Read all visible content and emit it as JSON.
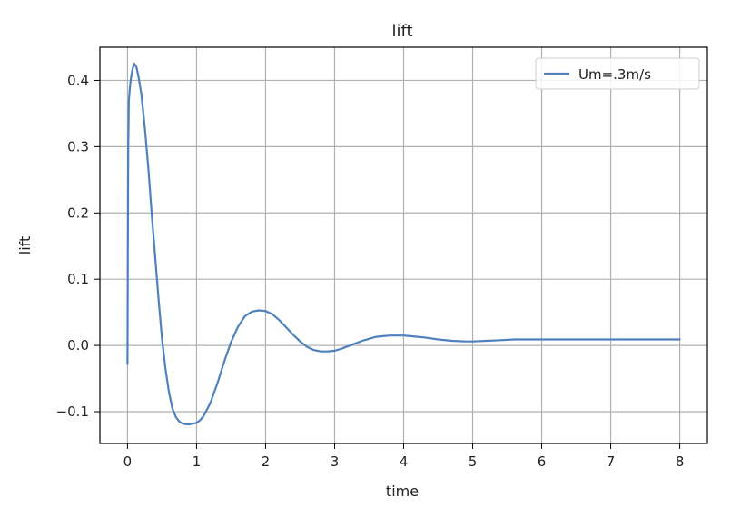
{
  "chart_data": {
    "type": "line",
    "title": "lift",
    "xlabel": "time",
    "ylabel": "lift",
    "xlim": [
      -0.4,
      8.4
    ],
    "ylim": [
      -0.148,
      0.45
    ],
    "xticks": [
      0,
      1,
      2,
      3,
      4,
      5,
      6,
      7,
      8
    ],
    "yticks": [
      -0.1,
      0.0,
      0.1,
      0.2,
      0.3,
      0.4
    ],
    "xtick_labels": [
      "0",
      "1",
      "2",
      "3",
      "4",
      "5",
      "6",
      "7",
      "8"
    ],
    "ytick_labels": [
      "−0.1",
      "0.0",
      "0.1",
      "0.2",
      "0.3",
      "0.4"
    ],
    "grid": true,
    "legend_position": "top-right",
    "series": [
      {
        "name": "Um=.3m/s",
        "color": "#4f81bd",
        "x": [
          0,
          0.005,
          0.01,
          0.02,
          0.04,
          0.06,
          0.08,
          0.1,
          0.13,
          0.16,
          0.2,
          0.25,
          0.3,
          0.35,
          0.4,
          0.45,
          0.5,
          0.55,
          0.6,
          0.65,
          0.7,
          0.75,
          0.8,
          0.85,
          0.9,
          0.95,
          1.0,
          1.05,
          1.1,
          1.2,
          1.3,
          1.4,
          1.5,
          1.6,
          1.7,
          1.8,
          1.9,
          2.0,
          2.1,
          2.2,
          2.3,
          2.4,
          2.5,
          2.6,
          2.7,
          2.8,
          2.9,
          3.0,
          3.1,
          3.2,
          3.3,
          3.4,
          3.5,
          3.6,
          3.7,
          3.8,
          3.9,
          4.0,
          4.1,
          4.2,
          4.3,
          4.5,
          4.7,
          4.9,
          5.0,
          5.2,
          5.4,
          5.6,
          5.8,
          6.0,
          6.2,
          6.4,
          6.6,
          6.8,
          7.0,
          7.2,
          7.4,
          7.6,
          7.8,
          8.0
        ],
        "y": [
          -0.028,
          0.15,
          0.3,
          0.37,
          0.395,
          0.41,
          0.42,
          0.425,
          0.42,
          0.405,
          0.38,
          0.33,
          0.27,
          0.2,
          0.135,
          0.07,
          0.01,
          -0.035,
          -0.07,
          -0.095,
          -0.108,
          -0.115,
          -0.118,
          -0.119,
          -0.119,
          -0.118,
          -0.117,
          -0.113,
          -0.107,
          -0.087,
          -0.058,
          -0.025,
          0.005,
          0.028,
          0.044,
          0.051,
          0.053,
          0.052,
          0.047,
          0.038,
          0.027,
          0.016,
          0.006,
          -0.002,
          -0.007,
          -0.009,
          -0.009,
          -0.008,
          -0.005,
          -0.001,
          0.003,
          0.007,
          0.01,
          0.013,
          0.014,
          0.015,
          0.015,
          0.015,
          0.014,
          0.013,
          0.012,
          0.009,
          0.007,
          0.006,
          0.006,
          0.007,
          0.008,
          0.009,
          0.009,
          0.009,
          0.009,
          0.009,
          0.009,
          0.009,
          0.009,
          0.009,
          0.009,
          0.009,
          0.009,
          0.009
        ]
      }
    ]
  }
}
